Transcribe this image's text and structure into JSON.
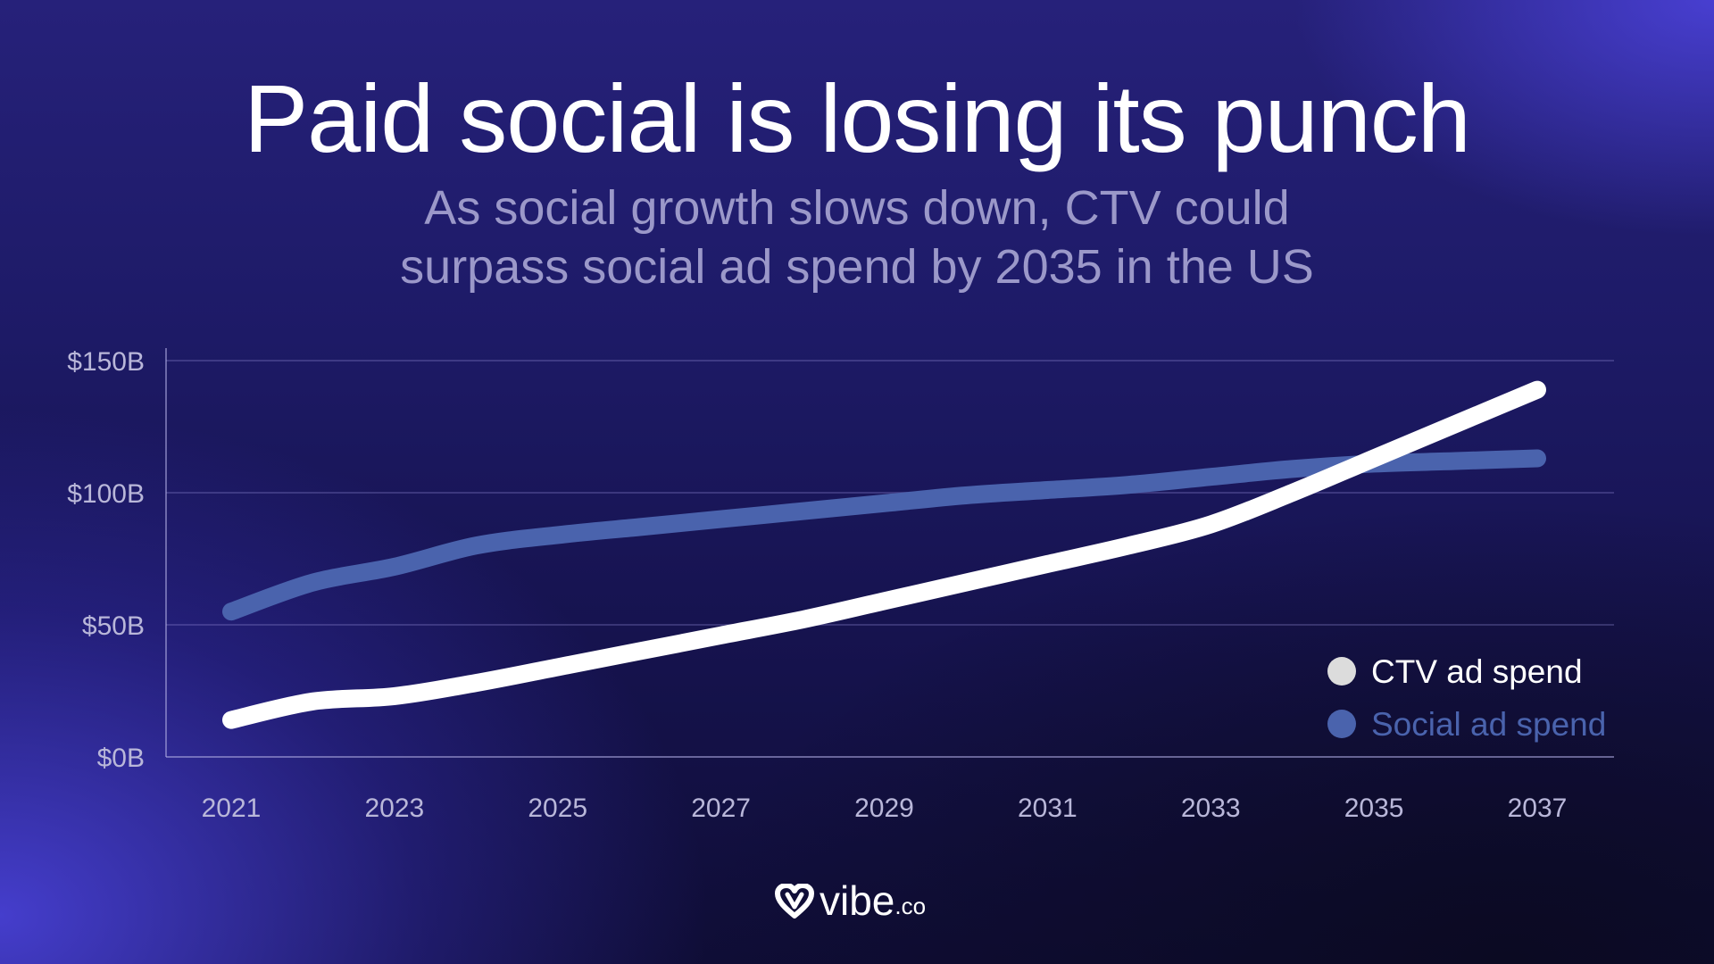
{
  "title": "Paid social is losing its punch",
  "subtitle_line1": "As social growth slows down, CTV could",
  "subtitle_line2": "surpass social ad spend by 2035 in the US",
  "logo": {
    "word": "vibe",
    "suffix": ".co",
    "icon": "vibe-heart-logo-icon"
  },
  "colors": {
    "ctv": "#ffffff",
    "social": "#4a63ad",
    "legend_ctv_dot": "#dcdcdc"
  },
  "chart_data": {
    "type": "line",
    "title": "Paid social is losing its punch",
    "ylim": [
      0,
      150
    ],
    "xlim": [
      2020.9,
      2037.1
    ],
    "y_ticks": [
      {
        "value": 0,
        "label": "$0B"
      },
      {
        "value": 50,
        "label": "$50B"
      },
      {
        "value": 100,
        "label": "$100B"
      },
      {
        "value": 150,
        "label": "$150B"
      }
    ],
    "x_ticks": [
      2021,
      2023,
      2025,
      2027,
      2029,
      2031,
      2033,
      2035,
      2037
    ],
    "grid": true,
    "legend_position": "bottom-right",
    "series": [
      {
        "name": "CTV ad spend",
        "color": "#ffffff",
        "x": [
          2021,
          2022,
          2023,
          2024,
          2025,
          2026,
          2027,
          2028,
          2029,
          2030,
          2031,
          2032,
          2033,
          2034,
          2035,
          2036,
          2037
        ],
        "values": [
          14,
          21,
          23,
          28,
          34,
          40,
          46,
          52,
          59,
          66,
          73,
          80,
          88,
          100,
          113,
          126,
          139
        ]
      },
      {
        "name": "Social ad spend",
        "color": "#4a63ad",
        "x": [
          2021,
          2022,
          2023,
          2024,
          2025,
          2026,
          2027,
          2028,
          2029,
          2030,
          2031,
          2032,
          2033,
          2034,
          2035,
          2036,
          2037
        ],
        "values": [
          55,
          66,
          72,
          80,
          84,
          87,
          90,
          93,
          96,
          99,
          101,
          103,
          106,
          109,
          111,
          112,
          113
        ]
      }
    ]
  }
}
